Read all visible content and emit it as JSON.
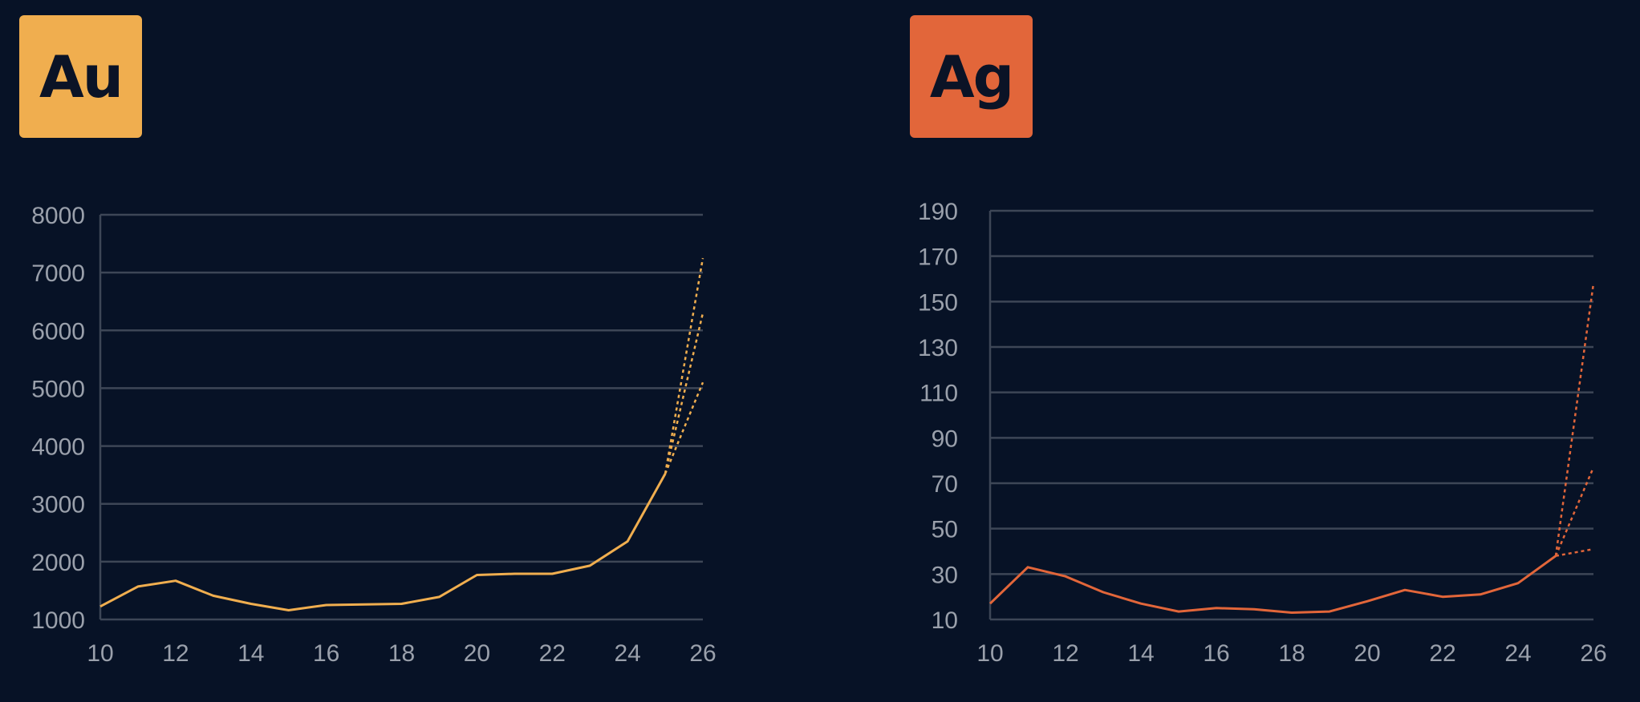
{
  "chart_data": [
    {
      "type": "line",
      "badge": "Au",
      "color": "#f0ae4f",
      "xlim": [
        10,
        26
      ],
      "ylim": [
        1000,
        8000
      ],
      "xticks": [
        10,
        12,
        14,
        16,
        18,
        20,
        22,
        24,
        26
      ],
      "yticks": [
        1000,
        2000,
        3000,
        4000,
        5000,
        6000,
        7000,
        8000
      ],
      "grid": true,
      "series": [
        {
          "style": "solid",
          "x": [
            10,
            11,
            12,
            13,
            14,
            15,
            16,
            17,
            18,
            19,
            20,
            21,
            22,
            23,
            24,
            25
          ],
          "y": [
            1225,
            1570,
            1670,
            1410,
            1270,
            1160,
            1250,
            1260,
            1270,
            1390,
            1770,
            1790,
            1790,
            1930,
            2350,
            3520
          ]
        },
        {
          "style": "dotted",
          "x": [
            25,
            26
          ],
          "y": [
            3520,
            7250
          ]
        },
        {
          "style": "dotted",
          "x": [
            25,
            26
          ],
          "y": [
            3520,
            6300
          ]
        },
        {
          "style": "dotted",
          "x": [
            25,
            26
          ],
          "y": [
            3520,
            5100
          ]
        }
      ]
    },
    {
      "type": "line",
      "badge": "Ag",
      "color": "#e2663a",
      "xlim": [
        10,
        26
      ],
      "ylim": [
        10,
        190
      ],
      "xticks": [
        10,
        12,
        14,
        16,
        18,
        20,
        22,
        24,
        26
      ],
      "yticks": [
        10,
        30,
        50,
        70,
        90,
        110,
        130,
        150,
        170,
        190
      ],
      "grid": true,
      "series": [
        {
          "style": "solid",
          "x": [
            10,
            11,
            12,
            13,
            14,
            15,
            16,
            17,
            18,
            19,
            20,
            21,
            22,
            23,
            24,
            25
          ],
          "y": [
            17,
            33,
            29,
            22,
            17,
            13.5,
            15,
            14.5,
            13,
            13.5,
            18,
            23,
            20,
            21,
            26,
            38
          ]
        },
        {
          "style": "dotted",
          "x": [
            25,
            26
          ],
          "y": [
            38,
            158
          ]
        },
        {
          "style": "dotted",
          "x": [
            25,
            26
          ],
          "y": [
            38,
            77
          ]
        },
        {
          "style": "dotted",
          "x": [
            25,
            26
          ],
          "y": [
            38,
            41
          ]
        }
      ]
    }
  ]
}
